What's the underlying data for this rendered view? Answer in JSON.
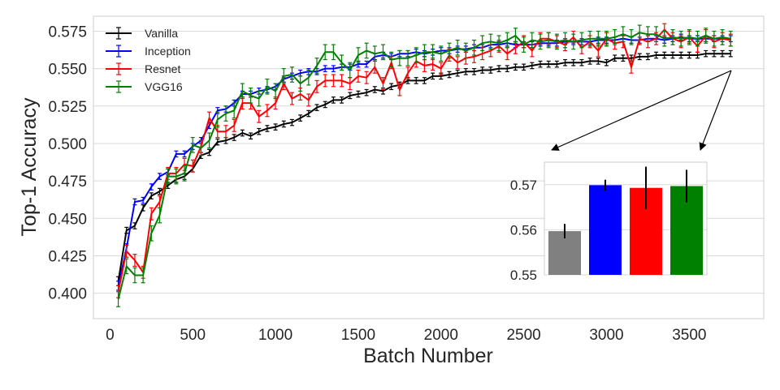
{
  "chart_data": [
    {
      "type": "line",
      "xlabel": "Batch Number",
      "ylabel": "Top-1 Accuracy",
      "xlim": [
        -100,
        3950
      ],
      "ylim": [
        0.383,
        0.585
      ],
      "xticks": [
        0,
        500,
        1000,
        1500,
        2000,
        2500,
        3000,
        3500
      ],
      "yticks": [
        0.4,
        0.425,
        0.45,
        0.475,
        0.5,
        0.525,
        0.55,
        0.575
      ],
      "grid": true,
      "legend_position": "top-left",
      "error_bars": true,
      "x": [
        50,
        100,
        150,
        200,
        250,
        300,
        350,
        400,
        450,
        500,
        550,
        600,
        650,
        700,
        750,
        800,
        850,
        900,
        950,
        1000,
        1050,
        1100,
        1150,
        1200,
        1250,
        1300,
        1350,
        1400,
        1450,
        1500,
        1550,
        1600,
        1650,
        1700,
        1750,
        1800,
        1850,
        1900,
        1950,
        2000,
        2050,
        2100,
        2150,
        2200,
        2250,
        2300,
        2350,
        2400,
        2450,
        2500,
        2550,
        2600,
        2650,
        2700,
        2750,
        2800,
        2850,
        2900,
        2950,
        3000,
        3050,
        3100,
        3150,
        3200,
        3250,
        3300,
        3350,
        3400,
        3450,
        3500,
        3550,
        3600,
        3650,
        3700,
        3750
      ],
      "series": [
        {
          "name": "Vanilla",
          "color": "#000000",
          "values": [
            0.408,
            0.442,
            0.445,
            0.457,
            0.465,
            0.468,
            0.472,
            0.476,
            0.478,
            0.483,
            0.492,
            0.494,
            0.501,
            0.502,
            0.504,
            0.507,
            0.505,
            0.508,
            0.51,
            0.511,
            0.513,
            0.514,
            0.517,
            0.52,
            0.524,
            0.526,
            0.529,
            0.529,
            0.532,
            0.533,
            0.534,
            0.536,
            0.535,
            0.538,
            0.539,
            0.542,
            0.542,
            0.542,
            0.545,
            0.545,
            0.546,
            0.547,
            0.548,
            0.548,
            0.549,
            0.549,
            0.55,
            0.55,
            0.551,
            0.551,
            0.552,
            0.553,
            0.553,
            0.553,
            0.554,
            0.554,
            0.554,
            0.555,
            0.555,
            0.554,
            0.557,
            0.557,
            0.557,
            0.558,
            0.558,
            0.559,
            0.559,
            0.559,
            0.559,
            0.559,
            0.559,
            0.56,
            0.56,
            0.56,
            0.56
          ],
          "errors": [
            0.003,
            0.002,
            0.002,
            0.002,
            0.002,
            0.002,
            0.002,
            0.002,
            0.002,
            0.002,
            0.002,
            0.002,
            0.002,
            0.002,
            0.002,
            0.002,
            0.002,
            0.002,
            0.002,
            0.002,
            0.002,
            0.002,
            0.002,
            0.002,
            0.002,
            0.002,
            0.002,
            0.002,
            0.002,
            0.002,
            0.002,
            0.002,
            0.002,
            0.002,
            0.002,
            0.002,
            0.002,
            0.002,
            0.002,
            0.002,
            0.002,
            0.002,
            0.002,
            0.002,
            0.002,
            0.002,
            0.002,
            0.002,
            0.002,
            0.002,
            0.002,
            0.002,
            0.002,
            0.002,
            0.002,
            0.002,
            0.002,
            0.002,
            0.002,
            0.002,
            0.002,
            0.002,
            0.002,
            0.002,
            0.002,
            0.002,
            0.002,
            0.002,
            0.002,
            0.002,
            0.002,
            0.002,
            0.002,
            0.002,
            0.002
          ]
        },
        {
          "name": "Inception",
          "color": "#0000ff",
          "values": [
            0.405,
            0.43,
            0.461,
            0.462,
            0.471,
            0.478,
            0.481,
            0.493,
            0.493,
            0.498,
            0.502,
            0.512,
            0.522,
            0.523,
            0.527,
            0.533,
            0.533,
            0.535,
            0.536,
            0.538,
            0.543,
            0.545,
            0.547,
            0.548,
            0.548,
            0.55,
            0.55,
            0.551,
            0.551,
            0.553,
            0.553,
            0.558,
            0.559,
            0.558,
            0.56,
            0.56,
            0.561,
            0.56,
            0.561,
            0.562,
            0.562,
            0.563,
            0.563,
            0.564,
            0.564,
            0.566,
            0.566,
            0.567,
            0.566,
            0.566,
            0.566,
            0.567,
            0.567,
            0.567,
            0.568,
            0.568,
            0.568,
            0.568,
            0.569,
            0.569,
            0.569,
            0.57,
            0.569,
            0.569,
            0.57,
            0.57,
            0.569,
            0.57,
            0.571,
            0.57,
            0.57,
            0.57,
            0.57,
            0.57,
            0.57
          ],
          "errors": [
            0.003,
            0.003,
            0.002,
            0.002,
            0.002,
            0.002,
            0.002,
            0.002,
            0.002,
            0.002,
            0.002,
            0.002,
            0.002,
            0.002,
            0.002,
            0.002,
            0.002,
            0.002,
            0.002,
            0.002,
            0.002,
            0.002,
            0.002,
            0.002,
            0.002,
            0.002,
            0.002,
            0.002,
            0.002,
            0.002,
            0.002,
            0.002,
            0.002,
            0.002,
            0.002,
            0.002,
            0.002,
            0.002,
            0.002,
            0.002,
            0.002,
            0.002,
            0.002,
            0.002,
            0.002,
            0.002,
            0.002,
            0.002,
            0.002,
            0.002,
            0.002,
            0.002,
            0.002,
            0.002,
            0.002,
            0.002,
            0.002,
            0.002,
            0.002,
            0.002,
            0.002,
            0.002,
            0.002,
            0.002,
            0.002,
            0.002,
            0.002,
            0.002,
            0.002,
            0.002,
            0.002,
            0.002,
            0.002,
            0.002,
            0.002
          ]
        },
        {
          "name": "Resnet",
          "color": "#ff0000",
          "values": [
            0.401,
            0.428,
            0.422,
            0.414,
            0.453,
            0.461,
            0.48,
            0.48,
            0.486,
            0.485,
            0.498,
            0.517,
            0.508,
            0.508,
            0.512,
            0.527,
            0.527,
            0.518,
            0.522,
            0.527,
            0.54,
            0.53,
            0.533,
            0.529,
            0.538,
            0.542,
            0.542,
            0.542,
            0.54,
            0.545,
            0.544,
            0.551,
            0.54,
            0.554,
            0.536,
            0.547,
            0.555,
            0.552,
            0.553,
            0.55,
            0.559,
            0.554,
            0.557,
            0.558,
            0.56,
            0.562,
            0.565,
            0.56,
            0.564,
            0.568,
            0.562,
            0.57,
            0.57,
            0.568,
            0.566,
            0.571,
            0.564,
            0.568,
            0.562,
            0.57,
            0.567,
            0.568,
            0.551,
            0.57,
            0.568,
            0.57,
            0.576,
            0.57,
            0.568,
            0.571,
            0.565,
            0.572,
            0.568,
            0.57,
            0.569
          ],
          "errors": [
            0.004,
            0.004,
            0.004,
            0.004,
            0.004,
            0.004,
            0.004,
            0.004,
            0.004,
            0.004,
            0.004,
            0.004,
            0.004,
            0.004,
            0.004,
            0.004,
            0.004,
            0.004,
            0.004,
            0.004,
            0.004,
            0.004,
            0.004,
            0.004,
            0.004,
            0.004,
            0.004,
            0.004,
            0.004,
            0.004,
            0.004,
            0.004,
            0.004,
            0.004,
            0.004,
            0.004,
            0.004,
            0.004,
            0.004,
            0.004,
            0.004,
            0.004,
            0.004,
            0.004,
            0.004,
            0.004,
            0.004,
            0.004,
            0.004,
            0.004,
            0.004,
            0.004,
            0.004,
            0.004,
            0.004,
            0.004,
            0.004,
            0.004,
            0.004,
            0.004,
            0.004,
            0.004,
            0.004,
            0.004,
            0.004,
            0.004,
            0.004,
            0.004,
            0.004,
            0.004,
            0.004,
            0.004,
            0.004,
            0.004,
            0.004
          ]
        },
        {
          "name": "VGG16",
          "color": "#008000",
          "values": [
            0.396,
            0.418,
            0.412,
            0.412,
            0.44,
            0.452,
            0.478,
            0.478,
            0.48,
            0.499,
            0.497,
            0.502,
            0.516,
            0.52,
            0.522,
            0.535,
            0.532,
            0.53,
            0.538,
            0.535,
            0.545,
            0.546,
            0.54,
            0.544,
            0.552,
            0.561,
            0.561,
            0.554,
            0.549,
            0.559,
            0.562,
            0.56,
            0.561,
            0.556,
            0.557,
            0.557,
            0.559,
            0.561,
            0.561,
            0.56,
            0.562,
            0.564,
            0.562,
            0.564,
            0.567,
            0.568,
            0.567,
            0.569,
            0.572,
            0.566,
            0.569,
            0.568,
            0.569,
            0.568,
            0.569,
            0.568,
            0.569,
            0.57,
            0.57,
            0.57,
            0.571,
            0.573,
            0.571,
            0.574,
            0.573,
            0.573,
            0.57,
            0.571,
            0.57,
            0.571,
            0.57,
            0.572,
            0.57,
            0.571,
            0.57
          ],
          "errors": [
            0.005,
            0.005,
            0.005,
            0.005,
            0.005,
            0.005,
            0.005,
            0.005,
            0.005,
            0.005,
            0.005,
            0.005,
            0.005,
            0.005,
            0.005,
            0.005,
            0.005,
            0.005,
            0.005,
            0.005,
            0.005,
            0.005,
            0.005,
            0.005,
            0.005,
            0.005,
            0.005,
            0.005,
            0.005,
            0.005,
            0.005,
            0.005,
            0.005,
            0.005,
            0.005,
            0.005,
            0.005,
            0.005,
            0.005,
            0.005,
            0.005,
            0.005,
            0.005,
            0.005,
            0.005,
            0.005,
            0.005,
            0.005,
            0.005,
            0.005,
            0.005,
            0.005,
            0.005,
            0.005,
            0.005,
            0.005,
            0.005,
            0.005,
            0.005,
            0.005,
            0.005,
            0.005,
            0.005,
            0.005,
            0.005,
            0.005,
            0.005,
            0.005,
            0.005,
            0.005,
            0.005,
            0.005,
            0.005,
            0.005,
            0.005
          ]
        }
      ]
    },
    {
      "type": "bar",
      "ylim": [
        0.55,
        0.575
      ],
      "yticks": [
        0.55,
        0.56,
        0.57
      ],
      "grid": true,
      "error_bars": true,
      "categories": [
        "Vanilla",
        "Inception",
        "Resnet",
        "VGG16"
      ],
      "values": [
        0.5597,
        0.5699,
        0.5693,
        0.5697
      ],
      "errors": [
        0.0016,
        0.0012,
        0.0047,
        0.0036
      ],
      "colors": [
        "#808080",
        "#0000ff",
        "#ff0000",
        "#008000"
      ]
    }
  ]
}
